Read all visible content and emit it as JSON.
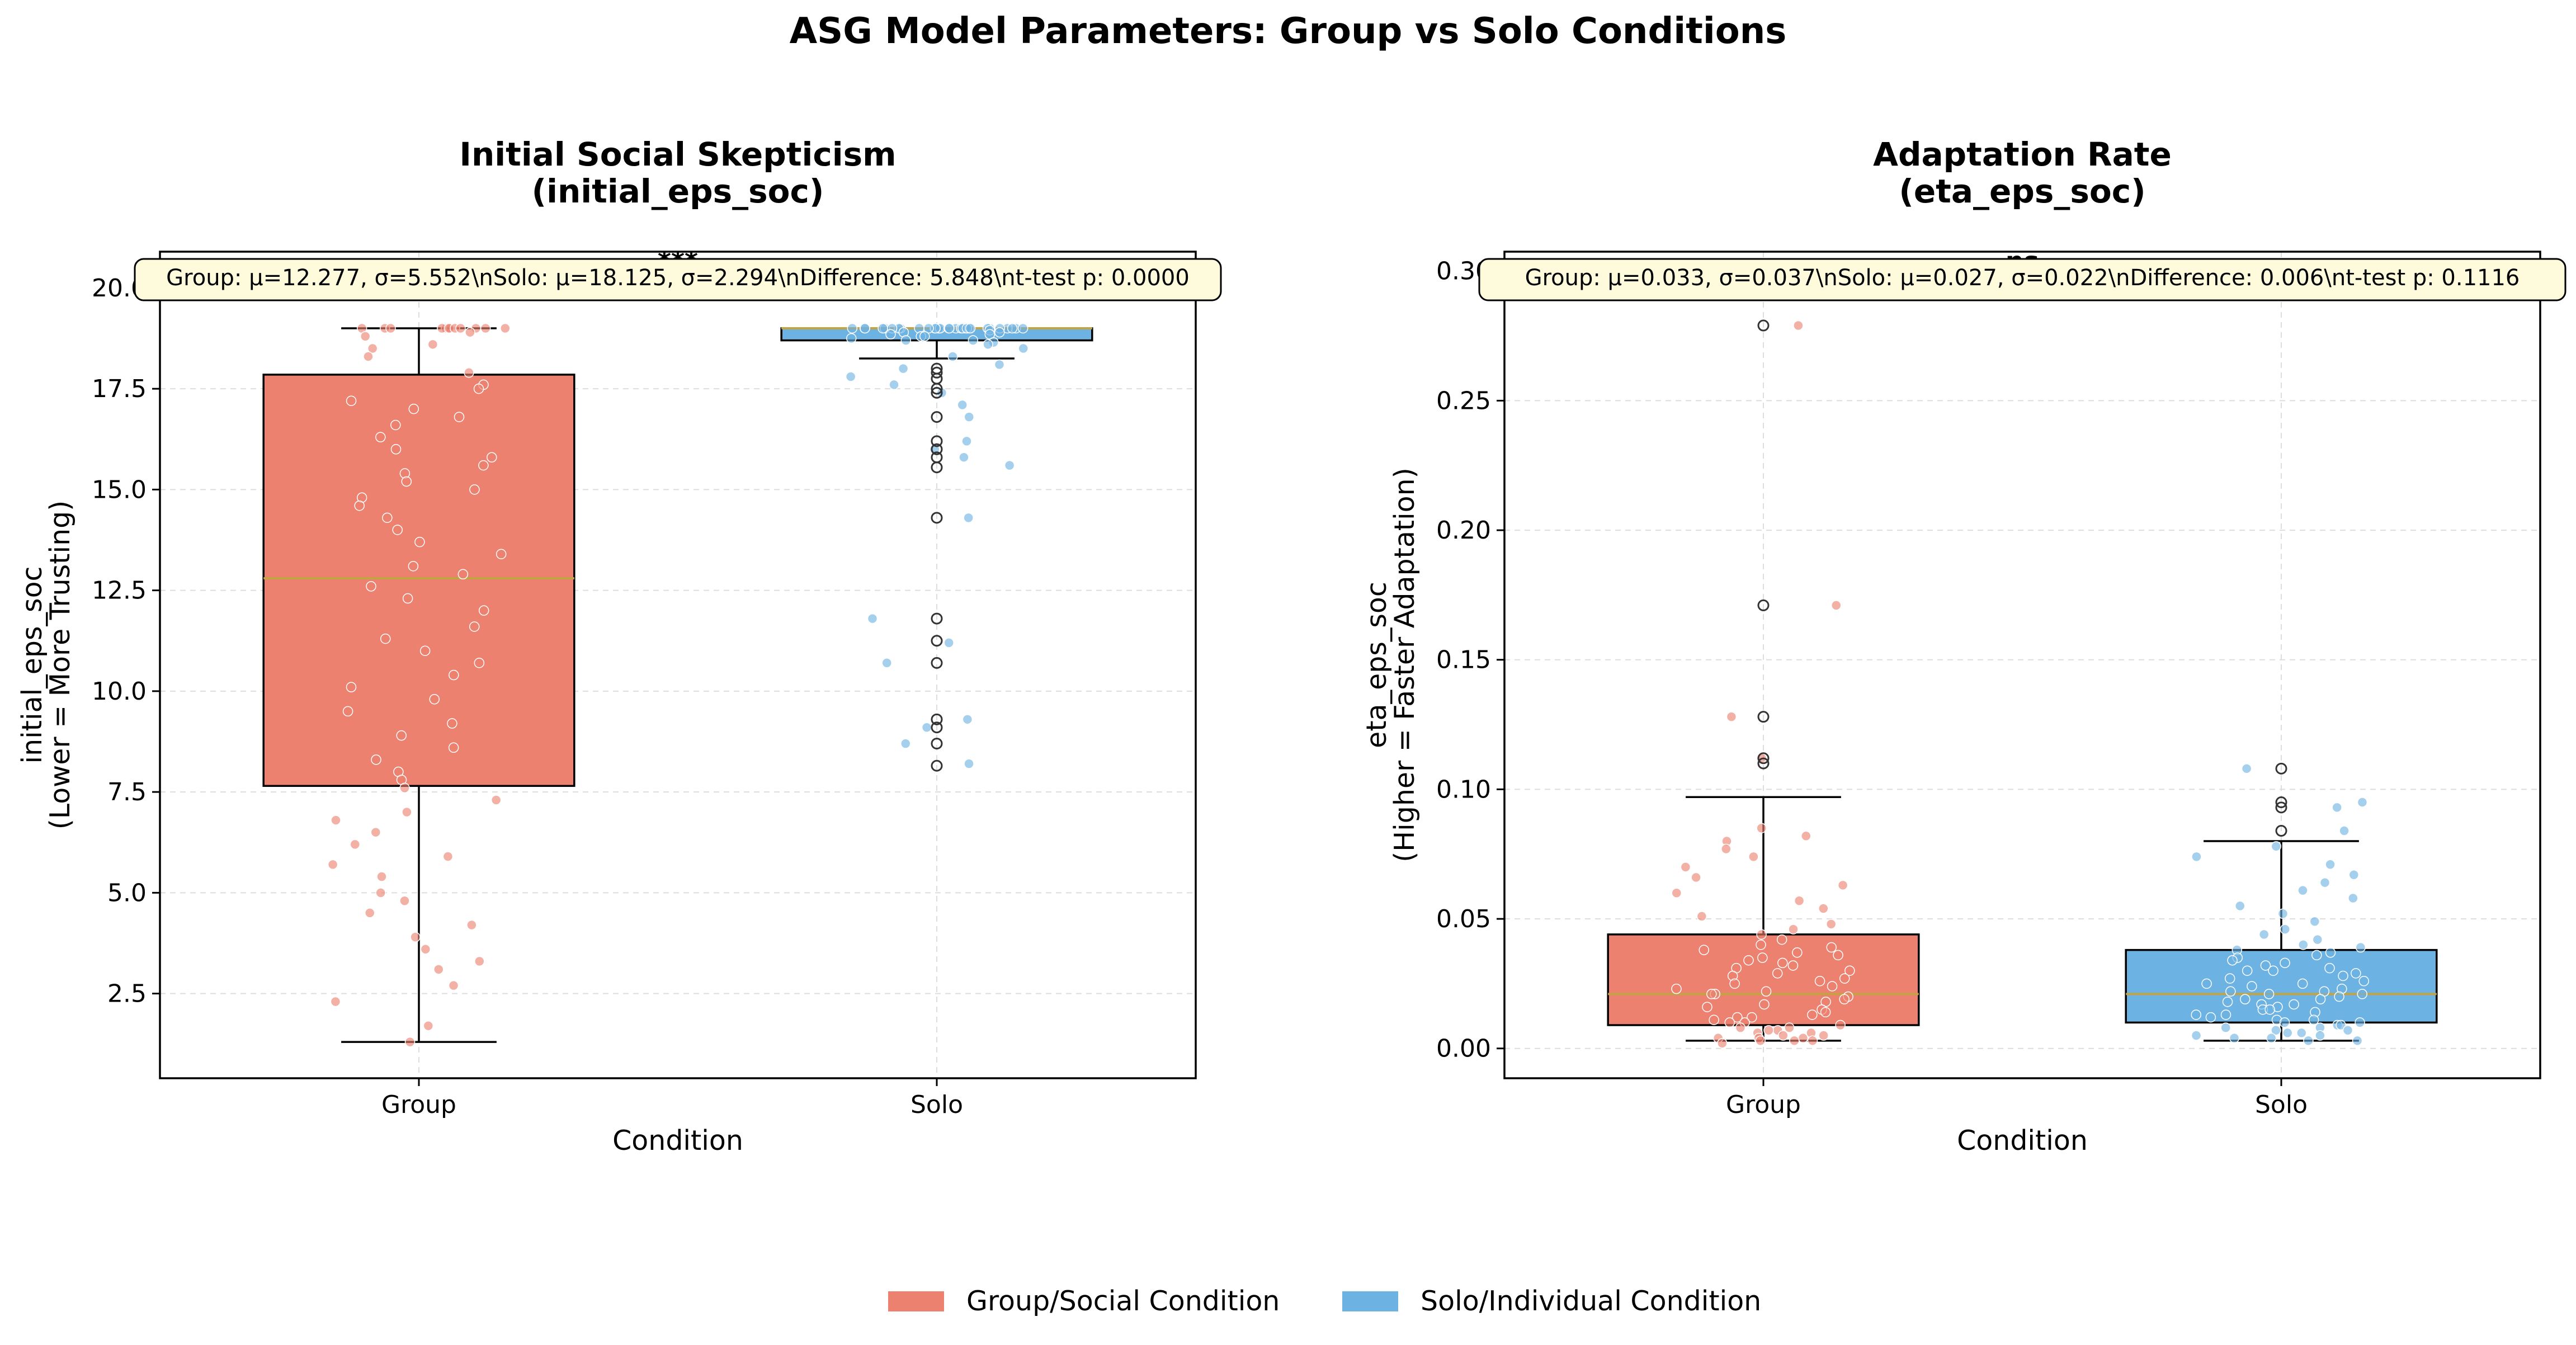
{
  "figure": {
    "title": "ASG Model Parameters: Group vs Solo Conditions",
    "legend": {
      "placement": "bottom-center",
      "items": [
        {
          "label": "Group/Social Condition",
          "color": "#ec8170"
        },
        {
          "label": "Solo/Individual Condition",
          "color": "#6cb2e2"
        }
      ]
    }
  },
  "chart_data": [
    {
      "type": "box",
      "title_line1": "Initial Social Skepticism",
      "title_line2": "(initial_eps_soc)",
      "xlabel": "Condition",
      "ylabel_line1": "initial_eps_soc",
      "ylabel_line2": "(Lower = More Trusting)",
      "categories": [
        "Group",
        "Solo"
      ],
      "ylim": [
        0.4,
        20.9
      ],
      "yticks": [
        2.5,
        5.0,
        7.5,
        10.0,
        12.5,
        15.0,
        17.5,
        20.0
      ],
      "tick_format": "1",
      "grid": true,
      "stats_text": "Group: μ=12.277, σ=5.552\\nSolo: μ=18.125, σ=2.294\\nDifference: 5.848\\nt-test p: 0.0000",
      "significance": "***",
      "boxes": [
        {
          "name": "Group",
          "color": "#ec8170",
          "q1": 7.65,
          "median": 12.8,
          "q3": 17.85,
          "whisker_low": 1.3,
          "whisker_high": 19.0,
          "outliers": []
        },
        {
          "name": "Solo",
          "color": "#6cb2e2",
          "q1": 18.7,
          "median": 19.0,
          "q3": 19.0,
          "whisker_low": 18.25,
          "whisker_high": 19.0,
          "outliers": [
            18.0,
            17.9,
            17.75,
            17.5,
            17.4,
            16.8,
            16.2,
            16.0,
            15.8,
            15.55,
            14.3,
            11.8,
            11.25,
            10.7,
            9.3,
            9.1,
            8.7,
            8.15
          ]
        }
      ],
      "points": [
        {
          "name": "Group",
          "color": "#ec8170",
          "values": [
            19.0,
            19.0,
            19.0,
            19.0,
            19.0,
            19.0,
            19.0,
            19.0,
            19.0,
            19.0,
            19.0,
            19.0,
            18.9,
            18.8,
            18.6,
            18.5,
            18.3,
            17.9,
            17.6,
            17.5,
            17.2,
            17.0,
            16.8,
            16.6,
            16.3,
            16.0,
            15.8,
            15.6,
            15.4,
            15.2,
            15.0,
            14.8,
            14.6,
            14.3,
            14.0,
            13.7,
            13.4,
            13.1,
            12.9,
            12.6,
            12.3,
            12.0,
            11.6,
            11.3,
            11.0,
            10.7,
            10.4,
            10.1,
            9.8,
            9.5,
            9.2,
            8.9,
            8.6,
            8.3,
            8.0,
            7.8,
            7.6,
            7.3,
            7.0,
            6.8,
            6.5,
            6.2,
            5.9,
            5.7,
            5.4,
            5.0,
            4.8,
            4.5,
            4.2,
            3.9,
            3.6,
            3.3,
            3.1,
            2.7,
            2.3,
            1.7,
            1.3
          ]
        },
        {
          "name": "Solo",
          "color": "#6cb2e2",
          "values": [
            19.0,
            19.0,
            19.0,
            19.0,
            19.0,
            19.0,
            19.0,
            19.0,
            19.0,
            19.0,
            19.0,
            19.0,
            19.0,
            19.0,
            19.0,
            19.0,
            19.0,
            19.0,
            19.0,
            19.0,
            19.0,
            19.0,
            19.0,
            19.0,
            19.0,
            19.0,
            19.0,
            19.0,
            19.0,
            19.0,
            18.95,
            18.9,
            18.9,
            18.85,
            18.85,
            18.8,
            18.8,
            18.75,
            18.7,
            18.7,
            18.65,
            18.6,
            18.5,
            18.3,
            18.1,
            18.0,
            17.8,
            17.6,
            17.4,
            17.1,
            16.8,
            16.2,
            16.0,
            15.8,
            15.6,
            14.3,
            11.8,
            11.2,
            10.7,
            9.3,
            9.1,
            8.7,
            8.2
          ]
        }
      ]
    },
    {
      "type": "box",
      "title_line1": "Adaptation Rate",
      "title_line2": "(eta_eps_soc)",
      "xlabel": "Condition",
      "ylabel_line1": "eta_eps_soc",
      "ylabel_line2": "(Higher = Faster Adaptation)",
      "categories": [
        "Group",
        "Solo"
      ],
      "ylim": [
        -0.0115,
        0.3075
      ],
      "yticks": [
        0.0,
        0.05,
        0.1,
        0.15,
        0.2,
        0.25,
        0.3
      ],
      "tick_format": "2",
      "grid": true,
      "stats_text": "Group: μ=0.033, σ=0.037\\nSolo: μ=0.027, σ=0.022\\nDifference: 0.006\\nt-test p: 0.1116",
      "significance": "ns",
      "boxes": [
        {
          "name": "Group",
          "color": "#ec8170",
          "q1": 0.009,
          "median": 0.021,
          "q3": 0.044,
          "whisker_low": 0.003,
          "whisker_high": 0.097,
          "outliers": [
            0.279,
            0.171,
            0.128,
            0.112,
            0.11
          ]
        },
        {
          "name": "Solo",
          "color": "#6cb2e2",
          "q1": 0.01,
          "median": 0.021,
          "q3": 0.038,
          "whisker_low": 0.003,
          "whisker_high": 0.08,
          "outliers": [
            0.108,
            0.095,
            0.093,
            0.084
          ]
        }
      ],
      "points": [
        {
          "name": "Group",
          "color": "#ec8170",
          "values": [
            0.279,
            0.171,
            0.128,
            0.112,
            0.085,
            0.082,
            0.08,
            0.077,
            0.074,
            0.07,
            0.066,
            0.063,
            0.06,
            0.057,
            0.054,
            0.051,
            0.048,
            0.046,
            0.044,
            0.042,
            0.04,
            0.039,
            0.038,
            0.037,
            0.036,
            0.035,
            0.034,
            0.033,
            0.032,
            0.031,
            0.03,
            0.029,
            0.028,
            0.027,
            0.026,
            0.025,
            0.024,
            0.023,
            0.022,
            0.021,
            0.021,
            0.02,
            0.019,
            0.018,
            0.017,
            0.016,
            0.015,
            0.014,
            0.013,
            0.012,
            0.012,
            0.011,
            0.01,
            0.01,
            0.009,
            0.008,
            0.008,
            0.007,
            0.007,
            0.006,
            0.006,
            0.005,
            0.005,
            0.004,
            0.004,
            0.004,
            0.003,
            0.003,
            0.003,
            0.002
          ]
        },
        {
          "name": "Solo",
          "color": "#6cb2e2",
          "values": [
            0.108,
            0.095,
            0.093,
            0.084,
            0.078,
            0.074,
            0.071,
            0.067,
            0.064,
            0.061,
            0.058,
            0.055,
            0.052,
            0.049,
            0.046,
            0.044,
            0.042,
            0.04,
            0.039,
            0.038,
            0.037,
            0.036,
            0.035,
            0.034,
            0.033,
            0.032,
            0.031,
            0.03,
            0.03,
            0.029,
            0.028,
            0.027,
            0.026,
            0.025,
            0.025,
            0.024,
            0.023,
            0.022,
            0.022,
            0.021,
            0.021,
            0.02,
            0.019,
            0.019,
            0.018,
            0.017,
            0.017,
            0.016,
            0.015,
            0.015,
            0.014,
            0.013,
            0.013,
            0.012,
            0.011,
            0.011,
            0.01,
            0.01,
            0.009,
            0.009,
            0.008,
            0.008,
            0.007,
            0.007,
            0.006,
            0.006,
            0.005,
            0.005,
            0.004,
            0.004,
            0.003,
            0.003
          ]
        }
      ]
    }
  ]
}
